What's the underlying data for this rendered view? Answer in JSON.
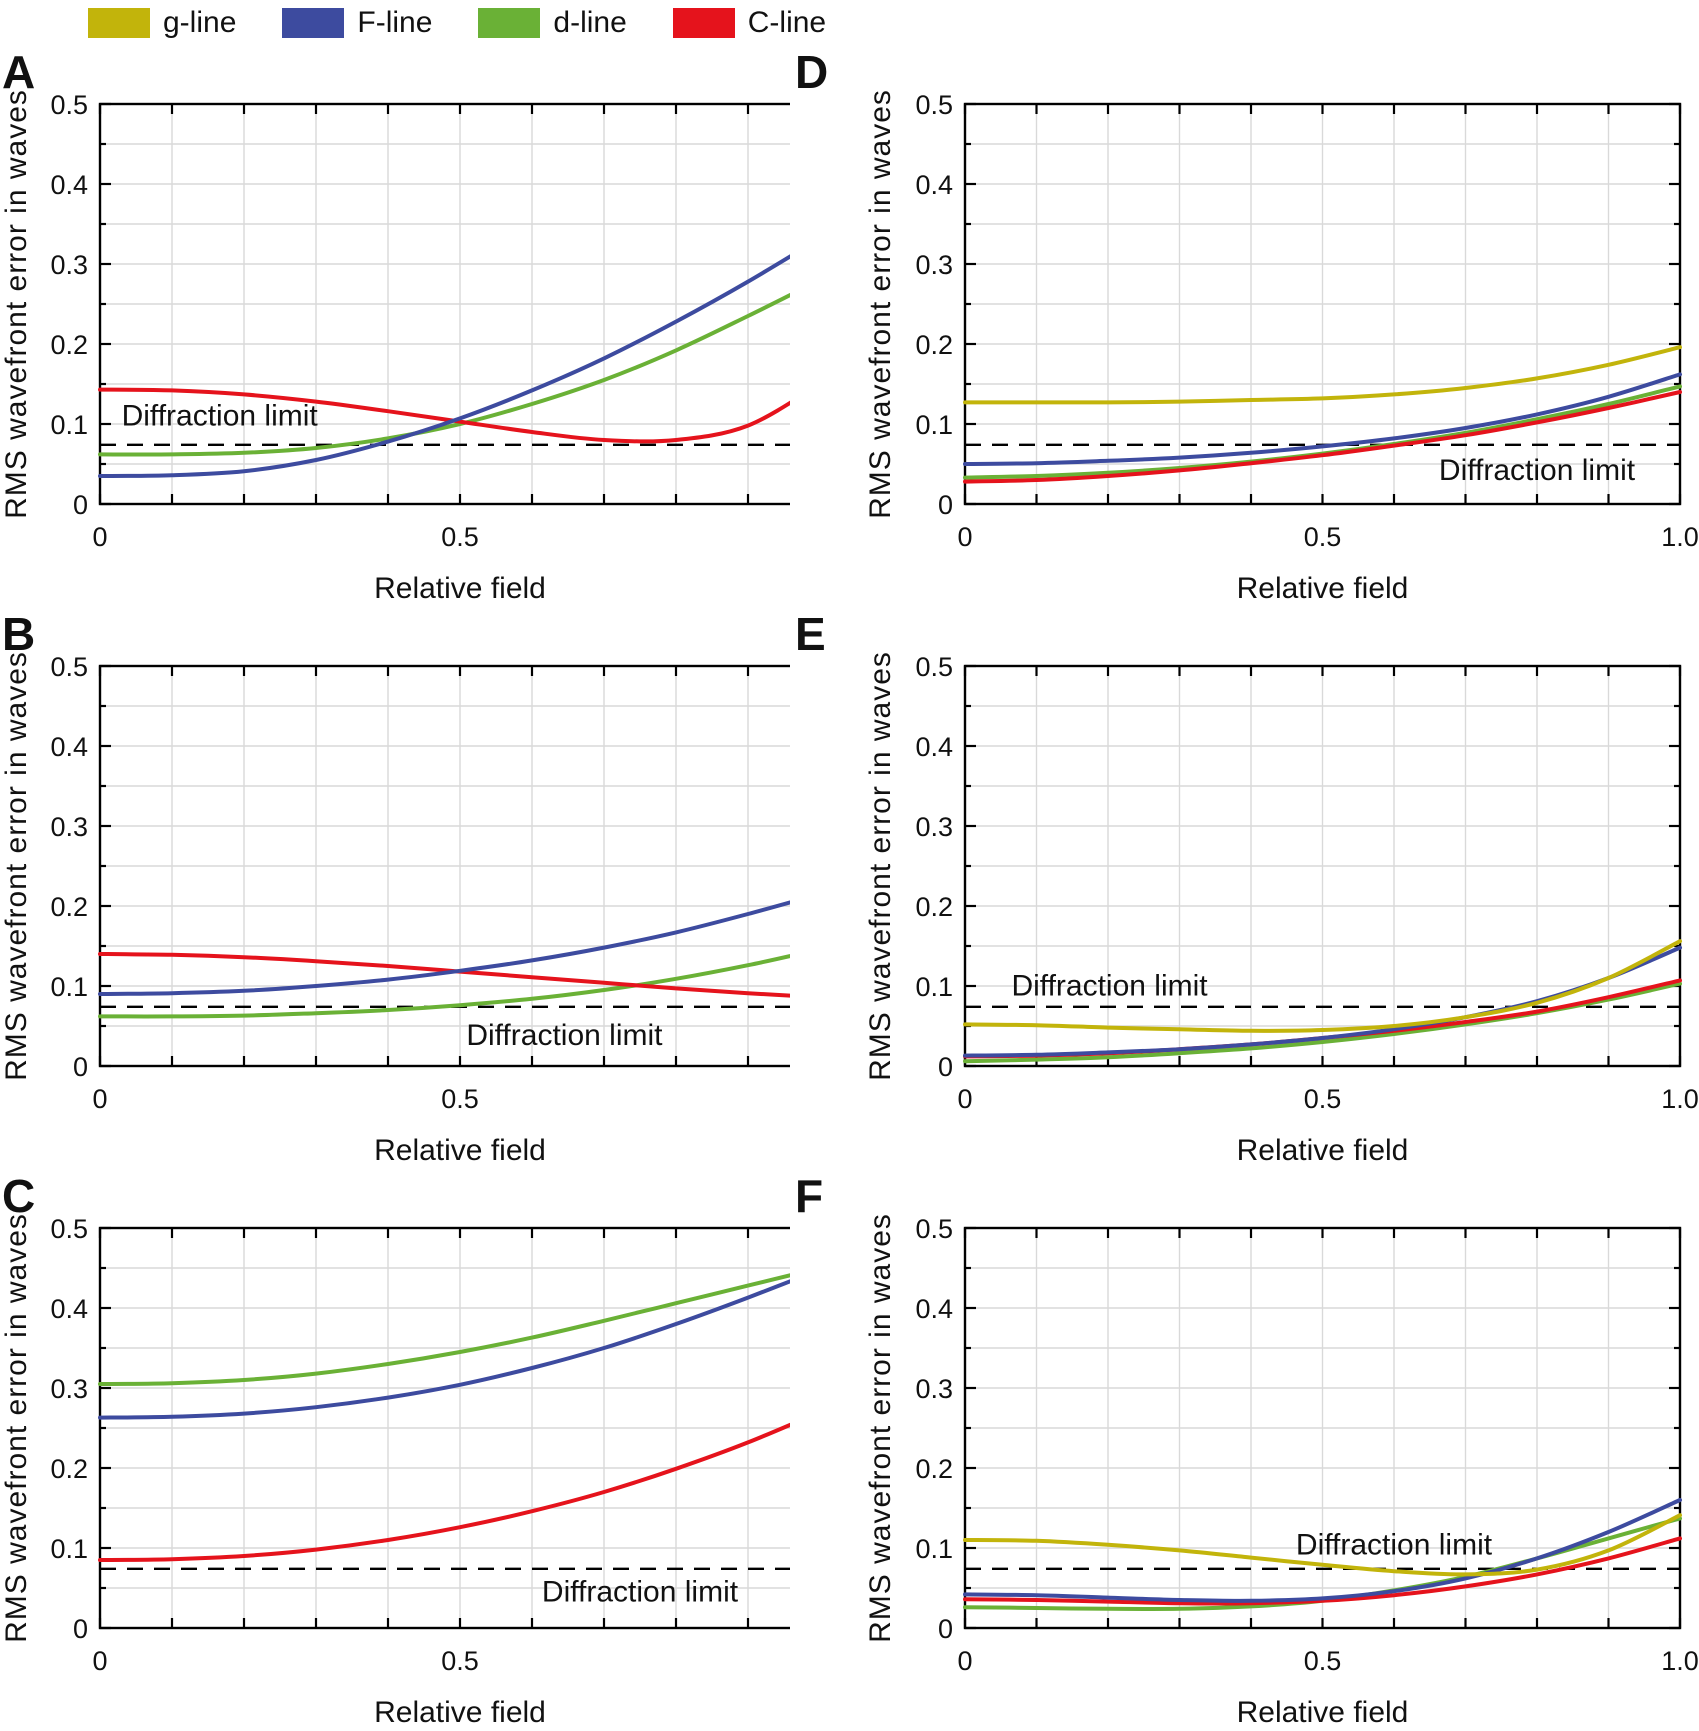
{
  "legend": {
    "items": [
      {
        "label": "g-line",
        "color": "#c2b40b"
      },
      {
        "label": "F-line",
        "color": "#3d4b9f"
      },
      {
        "label": "d-line",
        "color": "#6ab136"
      },
      {
        "label": "C-line",
        "color": "#e5131c"
      }
    ]
  },
  "chart_data": {
    "type": "line",
    "xlabel": "Relative field",
    "ylabel": "RMS wavefront error in waves",
    "xlim": [
      0,
      1.0
    ],
    "ylim": [
      0,
      0.5
    ],
    "x": [
      0,
      0.1,
      0.2,
      0.3,
      0.4,
      0.5,
      0.6,
      0.7,
      0.8,
      0.9,
      1.0
    ],
    "xticks": [
      {
        "v": 0,
        "label": "0"
      },
      {
        "v": 0.5,
        "label": "0.5"
      },
      {
        "v": 1.0,
        "label": "1.0"
      }
    ],
    "yticks": [
      {
        "v": 0,
        "label": "0"
      },
      {
        "v": 0.1,
        "label": "0.1"
      },
      {
        "v": 0.2,
        "label": "0.2"
      },
      {
        "v": 0.3,
        "label": "0.3"
      },
      {
        "v": 0.4,
        "label": "0.4"
      },
      {
        "v": 0.5,
        "label": "0.5"
      }
    ],
    "grid": {
      "x_step": 0.1,
      "y_step": 0.05,
      "color": "#d9d9d9"
    },
    "diffraction_limit": {
      "value": 0.074,
      "label": "Diffraction limit"
    },
    "panels": [
      {
        "letter": "A",
        "annotation": {
          "anchor": "start",
          "x": 0.03,
          "y": 0.098
        },
        "series": [
          {
            "name": "d-line",
            "y": [
              0.062,
              0.062,
              0.064,
              0.07,
              0.082,
              0.1,
              0.125,
              0.155,
              0.192,
              0.235,
              0.28
            ]
          },
          {
            "name": "C-line",
            "y": [
              0.143,
              0.142,
              0.137,
              0.128,
              0.116,
              0.103,
              0.09,
              0.08,
              0.08,
              0.098,
              0.15
            ]
          },
          {
            "name": "F-line",
            "y": [
              0.035,
              0.036,
              0.041,
              0.055,
              0.078,
              0.107,
              0.142,
              0.182,
              0.228,
              0.278,
              0.332
            ]
          }
        ]
      },
      {
        "letter": "B",
        "annotation": {
          "anchor": "middle",
          "x": 0.645,
          "y": 0.026
        },
        "series": [
          {
            "name": "d-line",
            "y": [
              0.062,
              0.062,
              0.063,
              0.066,
              0.07,
              0.076,
              0.084,
              0.095,
              0.109,
              0.126,
              0.146
            ]
          },
          {
            "name": "C-line",
            "y": [
              0.14,
              0.139,
              0.136,
              0.131,
              0.125,
              0.118,
              0.111,
              0.104,
              0.097,
              0.091,
              0.086
            ]
          },
          {
            "name": "F-line",
            "y": [
              0.09,
              0.091,
              0.094,
              0.1,
              0.108,
              0.119,
              0.132,
              0.148,
              0.167,
              0.19,
              0.215
            ]
          }
        ]
      },
      {
        "letter": "C",
        "annotation": {
          "anchor": "middle",
          "x": 0.75,
          "y": 0.033
        },
        "series": [
          {
            "name": "d-line",
            "y": [
              0.305,
              0.306,
              0.31,
              0.318,
              0.33,
              0.345,
              0.363,
              0.384,
              0.406,
              0.428,
              0.45
            ]
          },
          {
            "name": "C-line",
            "y": [
              0.085,
              0.086,
              0.09,
              0.098,
              0.11,
              0.126,
              0.146,
              0.17,
              0.199,
              0.232,
              0.27
            ]
          },
          {
            "name": "F-line",
            "y": [
              0.263,
              0.264,
              0.268,
              0.276,
              0.288,
              0.304,
              0.325,
              0.35,
              0.38,
              0.413,
              0.448
            ]
          }
        ]
      },
      {
        "letter": "D",
        "annotation": {
          "anchor": "middle",
          "x": 0.8,
          "y": 0.03
        },
        "series": [
          {
            "name": "d-line",
            "y": [
              0.033,
              0.035,
              0.039,
              0.045,
              0.053,
              0.063,
              0.075,
              0.089,
              0.106,
              0.125,
              0.147
            ]
          },
          {
            "name": "C-line",
            "y": [
              0.028,
              0.03,
              0.035,
              0.042,
              0.051,
              0.061,
              0.073,
              0.086,
              0.102,
              0.12,
              0.14
            ]
          },
          {
            "name": "F-line",
            "y": [
              0.05,
              0.051,
              0.054,
              0.058,
              0.064,
              0.072,
              0.082,
              0.095,
              0.112,
              0.134,
              0.162
            ]
          },
          {
            "name": "g-line",
            "y": [
              0.127,
              0.127,
              0.127,
              0.128,
              0.13,
              0.132,
              0.137,
              0.145,
              0.157,
              0.174,
              0.196
            ]
          }
        ]
      },
      {
        "letter": "E",
        "annotation": {
          "anchor": "start",
          "x": 0.065,
          "y": 0.088
        },
        "series": [
          {
            "name": "d-line",
            "y": [
              0.006,
              0.008,
              0.011,
              0.016,
              0.022,
              0.03,
              0.04,
              0.052,
              0.066,
              0.083,
              0.103
            ]
          },
          {
            "name": "C-line",
            "y": [
              0.012,
              0.013,
              0.016,
              0.021,
              0.027,
              0.035,
              0.044,
              0.055,
              0.068,
              0.086,
              0.107
            ]
          },
          {
            "name": "F-line",
            "y": [
              0.013,
              0.014,
              0.017,
              0.021,
              0.027,
              0.035,
              0.046,
              0.061,
              0.081,
              0.11,
              0.148
            ]
          },
          {
            "name": "g-line",
            "y": [
              0.052,
              0.051,
              0.048,
              0.046,
              0.044,
              0.045,
              0.05,
              0.061,
              0.079,
              0.11,
              0.156
            ]
          }
        ]
      },
      {
        "letter": "F",
        "annotation": {
          "anchor": "middle",
          "x": 0.6,
          "y": 0.092
        },
        "series": [
          {
            "name": "d-line",
            "y": [
              0.026,
              0.025,
              0.024,
              0.024,
              0.027,
              0.034,
              0.047,
              0.064,
              0.087,
              0.112,
              0.137
            ]
          },
          {
            "name": "C-line",
            "y": [
              0.036,
              0.035,
              0.033,
              0.031,
              0.031,
              0.034,
              0.041,
              0.052,
              0.067,
              0.087,
              0.112
            ]
          },
          {
            "name": "F-line",
            "y": [
              0.042,
              0.041,
              0.038,
              0.035,
              0.034,
              0.037,
              0.046,
              0.062,
              0.087,
              0.12,
              0.16
            ]
          },
          {
            "name": "g-line",
            "y": [
              0.11,
              0.109,
              0.104,
              0.097,
              0.088,
              0.079,
              0.071,
              0.067,
              0.073,
              0.097,
              0.141
            ]
          }
        ]
      }
    ]
  }
}
